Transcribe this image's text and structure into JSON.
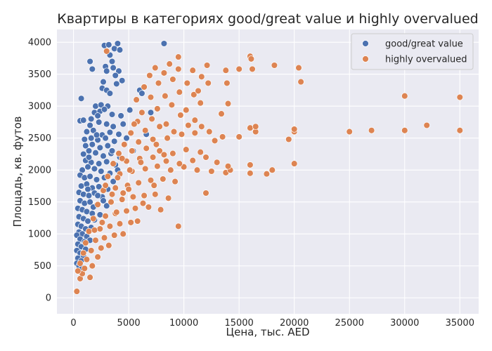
{
  "chart_data": {
    "type": "scatter",
    "title": "Квартиры в категориях good/great value и highly overvalued",
    "xlabel": "Цена, тыс. AED",
    "ylabel": "Площадь, кв. футов",
    "xlim": [
      -1500,
      36700
    ],
    "ylim": [
      -250,
      4200
    ],
    "x_ticks": [
      0,
      5000,
      10000,
      15000,
      20000,
      25000,
      30000,
      35000
    ],
    "y_ticks": [
      0,
      500,
      1000,
      1500,
      2000,
      2500,
      3000,
      3500,
      4000
    ],
    "grid": true,
    "legend_position": "top-right",
    "colors": {
      "background": "#eaeaf2",
      "grid": "#ffffff",
      "text": "#262626"
    },
    "series": [
      {
        "name": "good/great value",
        "color": "#4c72b0",
        "points": [
          [
            2800,
            3950
          ],
          [
            3200,
            3960
          ],
          [
            4000,
            3980
          ],
          [
            3700,
            3900
          ],
          [
            4200,
            3880
          ],
          [
            8200,
            3980
          ],
          [
            3300,
            3800
          ],
          [
            1500,
            3700
          ],
          [
            3500,
            3700
          ],
          [
            2900,
            3620
          ],
          [
            3000,
            3550
          ],
          [
            3600,
            3600
          ],
          [
            4100,
            3550
          ],
          [
            1700,
            3580
          ],
          [
            3800,
            3480
          ],
          [
            2700,
            3380
          ],
          [
            3900,
            3350
          ],
          [
            4400,
            3400
          ],
          [
            2600,
            3280
          ],
          [
            3000,
            3250
          ],
          [
            3300,
            3200
          ],
          [
            6000,
            3250
          ],
          [
            6200,
            3200
          ],
          [
            700,
            3120
          ],
          [
            2000,
            3000
          ],
          [
            2500,
            3020
          ],
          [
            3100,
            3000
          ],
          [
            1900,
            2900
          ],
          [
            2400,
            2920
          ],
          [
            2800,
            2950
          ],
          [
            5100,
            2940
          ],
          [
            4300,
            2850
          ],
          [
            3500,
            2870
          ],
          [
            7000,
            2900
          ],
          [
            600,
            2770
          ],
          [
            900,
            2780
          ],
          [
            1500,
            2700
          ],
          [
            2300,
            2750
          ],
          [
            3000,
            2720
          ],
          [
            3600,
            2680
          ],
          [
            4500,
            2720
          ],
          [
            1200,
            2600
          ],
          [
            1800,
            2620
          ],
          [
            2600,
            2550
          ],
          [
            3300,
            2590
          ],
          [
            4100,
            2560
          ],
          [
            6600,
            2560
          ],
          [
            1000,
            2480
          ],
          [
            1600,
            2500
          ],
          [
            2200,
            2470
          ],
          [
            2900,
            2500
          ],
          [
            3700,
            2450
          ],
          [
            4800,
            2500
          ],
          [
            1100,
            2380
          ],
          [
            1700,
            2400
          ],
          [
            2400,
            2350
          ],
          [
            3100,
            2380
          ],
          [
            900,
            2250
          ],
          [
            1400,
            2300
          ],
          [
            2000,
            2270
          ],
          [
            2700,
            2220
          ],
          [
            3400,
            2260
          ],
          [
            4200,
            2200
          ],
          [
            5400,
            2300
          ],
          [
            1100,
            2150
          ],
          [
            1600,
            2120
          ],
          [
            2300,
            2100
          ],
          [
            3000,
            2130
          ],
          [
            3800,
            2080
          ],
          [
            800,
            2000
          ],
          [
            1300,
            2050
          ],
          [
            1900,
            2020
          ],
          [
            2500,
            1980
          ],
          [
            3300,
            1950
          ],
          [
            4000,
            2000
          ],
          [
            600,
            1920
          ],
          [
            1000,
            1880
          ],
          [
            1500,
            1900
          ],
          [
            2100,
            1850
          ],
          [
            2800,
            1880
          ],
          [
            3600,
            1820
          ],
          [
            700,
            1750
          ],
          [
            1200,
            1780
          ],
          [
            1700,
            1720
          ],
          [
            2300,
            1740
          ],
          [
            3100,
            1700
          ],
          [
            500,
            1650
          ],
          [
            900,
            1620
          ],
          [
            1400,
            1600
          ],
          [
            1900,
            1640
          ],
          [
            2600,
            1580
          ],
          [
            600,
            1520
          ],
          [
            1000,
            1480
          ],
          [
            1500,
            1500
          ],
          [
            2100,
            1450
          ],
          [
            3000,
            1440
          ],
          [
            400,
            1400
          ],
          [
            800,
            1380
          ],
          [
            1200,
            1350
          ],
          [
            1700,
            1320
          ],
          [
            2400,
            1300
          ],
          [
            500,
            1270
          ],
          [
            900,
            1240
          ],
          [
            1300,
            1200
          ],
          [
            1900,
            1220
          ],
          [
            400,
            1150
          ],
          [
            700,
            1120
          ],
          [
            1100,
            1080
          ],
          [
            1600,
            1100
          ],
          [
            500,
            1030
          ],
          [
            800,
            1000
          ],
          [
            1200,
            960
          ],
          [
            300,
            980
          ],
          [
            600,
            920
          ],
          [
            1000,
            880
          ],
          [
            1500,
            900
          ],
          [
            400,
            840
          ],
          [
            700,
            800
          ],
          [
            1100,
            760
          ],
          [
            300,
            740
          ],
          [
            600,
            700
          ],
          [
            900,
            660
          ],
          [
            400,
            620
          ],
          [
            700,
            580
          ],
          [
            300,
            540
          ],
          [
            500,
            500
          ],
          [
            800,
            470
          ],
          [
            1300,
            1700
          ],
          [
            2200,
            1600
          ],
          [
            1800,
            1420
          ],
          [
            2700,
            1520
          ],
          [
            1400,
            2200
          ],
          [
            2100,
            2550
          ],
          [
            3500,
            2300
          ],
          [
            4600,
            2400
          ],
          [
            1600,
            2800
          ],
          [
            2200,
            2850
          ]
        ]
      },
      {
        "name": "highly overvalued",
        "color": "#dd8452",
        "points": [
          [
            300,
            100
          ],
          [
            600,
            300
          ],
          [
            1500,
            320
          ],
          [
            800,
            380
          ],
          [
            400,
            420
          ],
          [
            1000,
            460
          ],
          [
            1700,
            500
          ],
          [
            600,
            540
          ],
          [
            1200,
            600
          ],
          [
            2200,
            640
          ],
          [
            900,
            700
          ],
          [
            1600,
            740
          ],
          [
            2500,
            780
          ],
          [
            3200,
            820
          ],
          [
            1100,
            860
          ],
          [
            2000,
            900
          ],
          [
            2800,
            940
          ],
          [
            3700,
            980
          ],
          [
            4500,
            1000
          ],
          [
            1400,
            1040
          ],
          [
            2400,
            1080
          ],
          [
            3300,
            1120
          ],
          [
            4200,
            1160
          ],
          [
            5200,
            1180
          ],
          [
            5800,
            1200
          ],
          [
            9500,
            1120
          ],
          [
            1800,
            1240
          ],
          [
            2900,
            1280
          ],
          [
            3800,
            1320
          ],
          [
            4800,
            1360
          ],
          [
            5600,
            1400
          ],
          [
            6800,
            1420
          ],
          [
            7900,
            1380
          ],
          [
            2200,
            1460
          ],
          [
            3400,
            1500
          ],
          [
            4400,
            1540
          ],
          [
            5400,
            1580
          ],
          [
            6400,
            1600
          ],
          [
            7400,
            1620
          ],
          [
            8600,
            1560
          ],
          [
            12000,
            1640
          ],
          [
            2700,
            1680
          ],
          [
            3800,
            1720
          ],
          [
            4900,
            1760
          ],
          [
            5900,
            1800
          ],
          [
            7000,
            1840
          ],
          [
            8100,
            1860
          ],
          [
            9200,
            1820
          ],
          [
            3100,
            1900
          ],
          [
            4200,
            1940
          ],
          [
            5300,
            1980
          ],
          [
            6500,
            2020
          ],
          [
            7600,
            2060
          ],
          [
            8800,
            2000
          ],
          [
            10000,
            2050
          ],
          [
            11200,
            2000
          ],
          [
            12500,
            1980
          ],
          [
            13800,
            1960
          ],
          [
            14200,
            2000
          ],
          [
            16000,
            1950
          ],
          [
            17500,
            1940
          ],
          [
            18000,
            2000
          ],
          [
            20000,
            2100
          ],
          [
            16000,
            2080
          ],
          [
            14000,
            2060
          ],
          [
            3600,
            2100
          ],
          [
            4800,
            2140
          ],
          [
            6000,
            2180
          ],
          [
            7200,
            2200
          ],
          [
            8400,
            2140
          ],
          [
            9600,
            2100
          ],
          [
            10800,
            2150
          ],
          [
            12000,
            2200
          ],
          [
            13000,
            2120
          ],
          [
            4100,
            2260
          ],
          [
            5300,
            2300
          ],
          [
            6600,
            2340
          ],
          [
            7800,
            2300
          ],
          [
            9000,
            2260
          ],
          [
            10200,
            2320
          ],
          [
            11500,
            2280
          ],
          [
            12800,
            2460
          ],
          [
            4600,
            2400
          ],
          [
            5900,
            2440
          ],
          [
            7200,
            2480
          ],
          [
            8500,
            2500
          ],
          [
            9800,
            2560
          ],
          [
            11000,
            2580
          ],
          [
            12300,
            2600
          ],
          [
            13500,
            2520
          ],
          [
            15000,
            2520
          ],
          [
            16500,
            2600
          ],
          [
            19500,
            2480
          ],
          [
            20000,
            2600
          ],
          [
            25000,
            2600
          ],
          [
            27000,
            2620
          ],
          [
            30000,
            2620
          ],
          [
            32000,
            2700
          ],
          [
            35000,
            2620
          ],
          [
            20000,
            2640
          ],
          [
            16000,
            2660
          ],
          [
            16500,
            2680
          ],
          [
            5200,
            2580
          ],
          [
            6500,
            2620
          ],
          [
            7800,
            2680
          ],
          [
            9100,
            2600
          ],
          [
            10400,
            2700
          ],
          [
            11600,
            2680
          ],
          [
            5800,
            2760
          ],
          [
            7100,
            2800
          ],
          [
            8400,
            2720
          ],
          [
            9700,
            2860
          ],
          [
            11000,
            2780
          ],
          [
            13400,
            2880
          ],
          [
            6200,
            2900
          ],
          [
            7600,
            2960
          ],
          [
            8900,
            3020
          ],
          [
            10200,
            2940
          ],
          [
            11500,
            3050
          ],
          [
            14000,
            3040
          ],
          [
            5700,
            3100
          ],
          [
            7000,
            3140
          ],
          [
            8300,
            3160
          ],
          [
            9600,
            3220
          ],
          [
            10900,
            3180
          ],
          [
            11300,
            3240
          ],
          [
            12200,
            3360
          ],
          [
            13900,
            3360
          ],
          [
            6400,
            3300
          ],
          [
            7700,
            3360
          ],
          [
            9000,
            3420
          ],
          [
            10300,
            3360
          ],
          [
            11600,
            3460
          ],
          [
            6900,
            3480
          ],
          [
            8200,
            3520
          ],
          [
            9500,
            3580
          ],
          [
            10800,
            3560
          ],
          [
            12100,
            3640
          ],
          [
            13800,
            3560
          ],
          [
            15000,
            3580
          ],
          [
            16200,
            3580
          ],
          [
            18200,
            3640
          ],
          [
            20400,
            3600
          ],
          [
            20600,
            3380
          ],
          [
            7400,
            3600
          ],
          [
            8700,
            3660
          ],
          [
            9500,
            3770
          ],
          [
            16000,
            3780
          ],
          [
            16100,
            3740
          ],
          [
            3000,
            3860
          ],
          [
            30000,
            3160
          ],
          [
            35000,
            3140
          ],
          [
            4000,
            1880
          ],
          [
            5000,
            1700
          ],
          [
            6300,
            1480
          ],
          [
            7300,
            1760
          ],
          [
            2600,
            1180
          ],
          [
            3900,
            1340
          ],
          [
            4500,
            1640
          ],
          [
            5100,
            2000
          ],
          [
            6100,
            2120
          ],
          [
            7500,
            2400
          ],
          [
            8200,
            2240
          ],
          [
            5500,
            2720
          ],
          [
            4400,
            2180
          ],
          [
            3500,
            1620
          ],
          [
            2900,
            1760
          ],
          [
            1900,
            1060
          ]
        ]
      }
    ]
  }
}
